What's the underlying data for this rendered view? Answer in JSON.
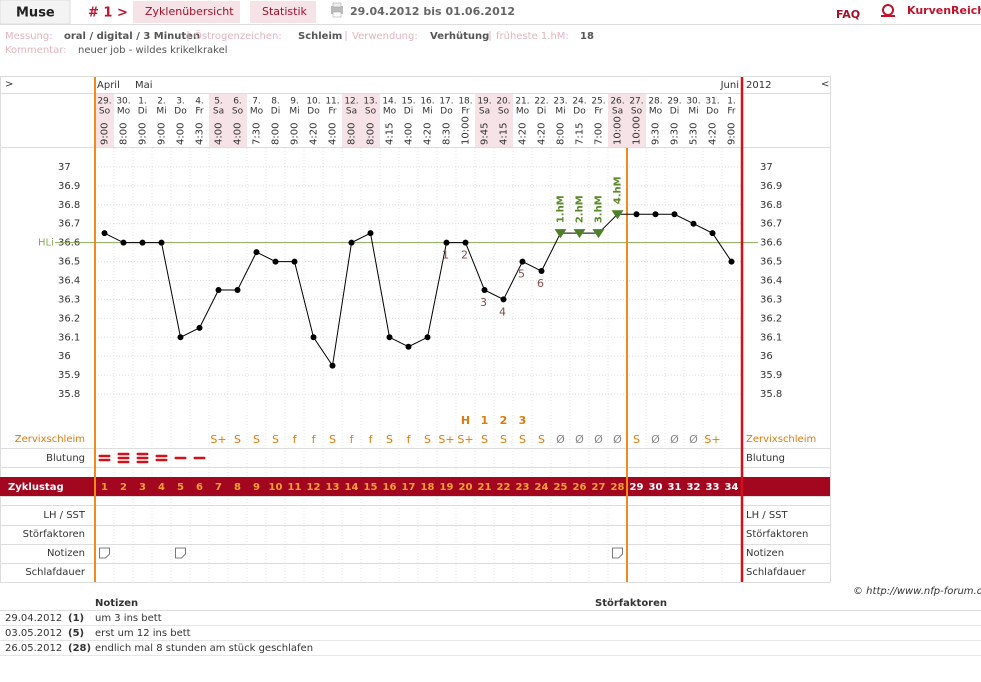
{
  "header": {
    "user": "Muse",
    "cycle": "# 1 >",
    "tabs": [
      "Zyklenübersicht",
      "Statistik"
    ],
    "range": "29.04.2012 bis 01.06.2012",
    "faq": "FAQ",
    "brand": "KurvenReich"
  },
  "info": {
    "items": [
      {
        "label": "Messung:",
        "value": "oral / digital / 3 Minuten"
      },
      {
        "label": "Östrogenzeichen:",
        "value": "Schleim"
      },
      {
        "label": "Verwendung:",
        "value": "Verhütung"
      },
      {
        "label": "früheste 1.hM:",
        "value": "18"
      }
    ],
    "comment_label": "Kommentar:",
    "comment": "neuer job - wildes krikelkrakel"
  },
  "chart_data": {
    "type": "line",
    "nav": [
      ">",
      "<"
    ],
    "year": "2012",
    "months": [
      "April",
      null,
      "Mai",
      null,
      null,
      null,
      null,
      null,
      null,
      null,
      null,
      null,
      null,
      null,
      null,
      null,
      null,
      null,
      null,
      null,
      null,
      null,
      null,
      null,
      null,
      null,
      null,
      null,
      null,
      null,
      null,
      null,
      null,
      "Juni"
    ],
    "dates": [
      "29.",
      "30.",
      "1.",
      "2.",
      "3.",
      "4.",
      "5.",
      "6.",
      "7.",
      "8.",
      "9.",
      "10.",
      "11.",
      "12.",
      "13.",
      "14.",
      "15.",
      "16.",
      "17.",
      "18.",
      "19.",
      "20.",
      "21.",
      "22.",
      "23.",
      "24.",
      "25.",
      "26.",
      "27.",
      "28.",
      "29.",
      "30.",
      "31.",
      "1."
    ],
    "weekdays": [
      "So",
      "Mo",
      "Di",
      "Mi",
      "Do",
      "Fr",
      "Sa",
      "So",
      "Mo",
      "Di",
      "Mi",
      "Do",
      "Fr",
      "Sa",
      "So",
      "Mo",
      "Di",
      "Mi",
      "Do",
      "Fr",
      "Sa",
      "So",
      "Mo",
      "Di",
      "Mi",
      "Do",
      "Fr",
      "Sa",
      "So",
      "Mo",
      "Di",
      "Mi",
      "Do",
      "Fr"
    ],
    "times": [
      "9:00",
      "8:00",
      "9:00",
      "9:00",
      "4:00",
      "4:30",
      "4:00",
      "4:00",
      "7:30",
      "8:00",
      "9:00",
      "4:20",
      "4:00",
      "8:00",
      "8:00",
      "4:15",
      "4:00",
      "4:20",
      "8:30",
      "10:00",
      "9:45",
      "4:15",
      "4:20",
      "4:20",
      "8:00",
      "7:15",
      "7:00",
      "10:00",
      "10:00",
      "9:30",
      "9:30",
      "5:30",
      "4:20",
      "9:00"
    ],
    "cycle_days": [
      1,
      2,
      3,
      4,
      5,
      6,
      7,
      8,
      9,
      10,
      11,
      12,
      13,
      14,
      15,
      16,
      17,
      18,
      19,
      20,
      21,
      22,
      23,
      24,
      25,
      26,
      27,
      28,
      29,
      30,
      31,
      32,
      33,
      34
    ],
    "values": [
      36.65,
      36.6,
      36.6,
      36.6,
      36.1,
      36.15,
      36.35,
      36.35,
      36.55,
      36.5,
      36.5,
      36.1,
      35.95,
      36.6,
      36.65,
      36.1,
      36.05,
      36.1,
      36.6,
      36.6,
      36.35,
      36.3,
      36.5,
      36.45,
      36.65,
      36.65,
      36.65,
      36.75,
      36.75,
      36.75,
      36.75,
      36.7,
      36.65,
      36.5
    ],
    "color": "#000000",
    "ylim": [
      35.7,
      37.1
    ],
    "yticks": [
      37,
      36.9,
      36.8,
      36.7,
      36.6,
      36.5,
      36.4,
      36.3,
      36.2,
      36.1,
      36,
      35.9,
      35.8
    ],
    "grid": true,
    "cover_line": {
      "label": "HLi",
      "value": 36.6,
      "color": "#8aa85a"
    },
    "high_markers": [
      null,
      null,
      null,
      null,
      null,
      null,
      null,
      null,
      null,
      null,
      null,
      null,
      null,
      null,
      null,
      null,
      null,
      null,
      null,
      null,
      null,
      null,
      null,
      null,
      "1.hM",
      "2.hM",
      "3.hM",
      "4.hM",
      null,
      null,
      null,
      null,
      null,
      null
    ],
    "low_markers": [
      null,
      null,
      null,
      null,
      null,
      null,
      null,
      null,
      null,
      null,
      null,
      null,
      null,
      null,
      null,
      null,
      null,
      null,
      "1",
      "2",
      "3",
      "4",
      "5",
      "6",
      null,
      null,
      null,
      null,
      null,
      null,
      null,
      null,
      null,
      null
    ],
    "peak": [
      null,
      null,
      null,
      null,
      null,
      null,
      null,
      null,
      null,
      null,
      null,
      null,
      null,
      null,
      null,
      null,
      null,
      null,
      null,
      "H",
      "1",
      "2",
      "3",
      null,
      null,
      null,
      null,
      null,
      null,
      null,
      null,
      null,
      null,
      null
    ],
    "mucus": [
      null,
      null,
      null,
      null,
      null,
      null,
      "S+",
      "S",
      "S",
      "S",
      "f",
      "f",
      "S",
      "f",
      "f",
      "S",
      "f",
      "S",
      "S+",
      "S+",
      "S",
      "S",
      "S",
      "S",
      "Ø",
      "Ø",
      "Ø",
      "Ø",
      "S",
      "Ø",
      "Ø",
      "Ø",
      "S+",
      null
    ],
    "bleeding": [
      2,
      3,
      3,
      2,
      1,
      1,
      null,
      null,
      null,
      null,
      null,
      null,
      null,
      null,
      null,
      null,
      null,
      null,
      null,
      null,
      null,
      null,
      null,
      null,
      null,
      null,
      null,
      null,
      null,
      null,
      null,
      null,
      null,
      null
    ],
    "note_flags": [
      true,
      false,
      false,
      false,
      true,
      false,
      false,
      false,
      false,
      false,
      false,
      false,
      false,
      false,
      false,
      false,
      false,
      false,
      false,
      false,
      false,
      false,
      false,
      false,
      false,
      false,
      false,
      true,
      false,
      false,
      false,
      false,
      false,
      false
    ],
    "row_labels": {
      "mucus": "Zervixschleim",
      "bleeding": "Blutung",
      "cycle": "Zyklustag",
      "lh": "LH / SST",
      "disturb": "Störfaktoren",
      "notes": "Notizen",
      "sleep": "Schlafdauer"
    }
  },
  "copyright": "© http://www.nfp-forum.de",
  "notes_table": {
    "headers": [
      "Notizen",
      "Störfaktoren"
    ],
    "rows": [
      [
        "29.04.2012",
        "(1)",
        "um 3 ins bett"
      ],
      [
        "03.05.2012",
        "(5)",
        "erst um 12 ins bett"
      ],
      [
        "26.05.2012",
        "(28)",
        "endlich mal 8 stunden am stück geschlafen"
      ]
    ]
  }
}
